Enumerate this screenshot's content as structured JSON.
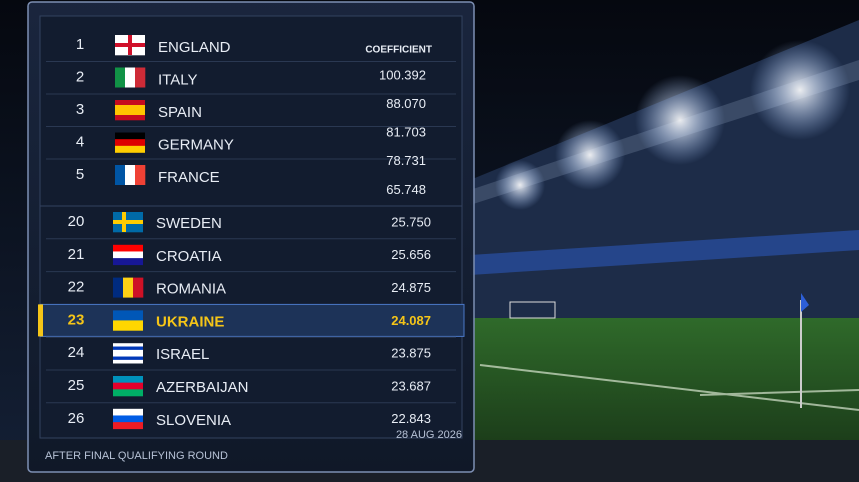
{
  "top_group": {
    "column_header": "COEFFICIENT",
    "rows": [
      {
        "rank": "1",
        "name": "ENGLAND"
      },
      {
        "rank": "2",
        "name": "ITALY"
      },
      {
        "rank": "3",
        "name": "SPAIN"
      },
      {
        "rank": "4",
        "name": "GERMANY"
      },
      {
        "rank": "5",
        "name": "FRANCE"
      }
    ],
    "coefficients": [
      "100.392",
      "88.070",
      "81.703",
      "78.731",
      "65.748"
    ]
  },
  "bottom_group": {
    "rows": [
      {
        "rank": "20",
        "name": "SWEDEN",
        "coefficient": "25.750"
      },
      {
        "rank": "21",
        "name": "CROATIA",
        "coefficient": "25.656"
      },
      {
        "rank": "22",
        "name": "ROMANIA",
        "coefficient": "24.875"
      },
      {
        "rank": "23",
        "name": "UKRAINE",
        "coefficient": "24.087"
      },
      {
        "rank": "24",
        "name": "ISRAEL",
        "coefficient": "23.875"
      },
      {
        "rank": "25",
        "name": "AZERBAIJAN",
        "coefficient": "23.687"
      },
      {
        "rank": "26",
        "name": "SLOVENIA",
        "coefficient": "22.843"
      }
    ]
  },
  "footer": {
    "note": "AFTER FINAL QUALIFYING ROUND",
    "date": "28 AUG 2026"
  }
}
